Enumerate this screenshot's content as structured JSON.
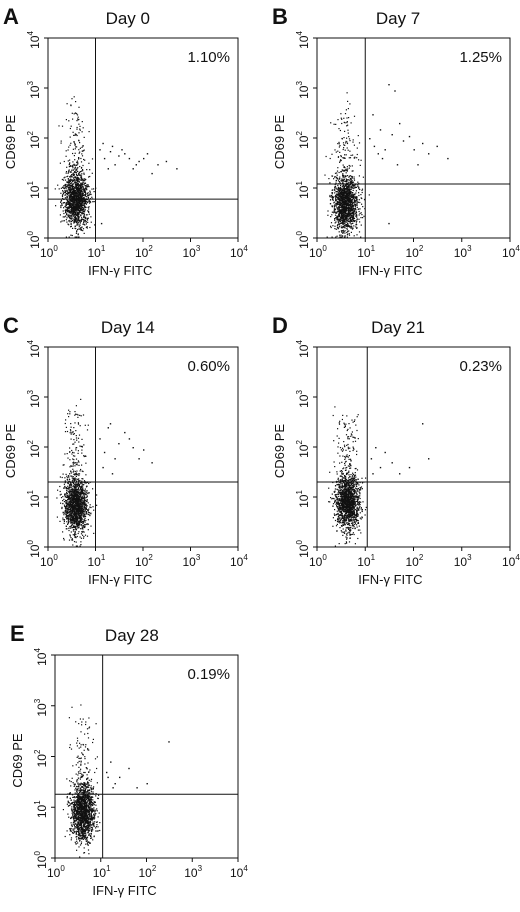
{
  "chart_data": [
    {
      "type": "scatter",
      "panel": "A",
      "title": "Day 0",
      "xlabel": "IFN-γ FITC",
      "ylabel": "CD69 PE",
      "xscale": "log",
      "yscale": "log",
      "xlim": [
        1,
        10000
      ],
      "ylim": [
        1,
        10000
      ],
      "xticks": [
        {
          "base": "10",
          "exp": "0"
        },
        {
          "base": "10",
          "exp": "1"
        },
        {
          "base": "10",
          "exp": "2"
        },
        {
          "base": "10",
          "exp": "3"
        },
        {
          "base": "10",
          "exp": "4"
        }
      ],
      "yticks": [
        {
          "base": "10",
          "exp": "0"
        },
        {
          "base": "10",
          "exp": "1"
        },
        {
          "base": "10",
          "exp": "2"
        },
        {
          "base": "10",
          "exp": "3"
        },
        {
          "base": "10",
          "exp": "4"
        }
      ],
      "gate_x": 10,
      "gate_y": 6,
      "annotation": "1.10%",
      "population": {
        "center_x": 3.8,
        "center_y": 6,
        "n": 1500
      },
      "outliers": [
        [
          12,
          60
        ],
        [
          15,
          40
        ],
        [
          20,
          55
        ],
        [
          25,
          30
        ],
        [
          30,
          45
        ],
        [
          40,
          50
        ],
        [
          60,
          25
        ],
        [
          80,
          35
        ],
        [
          100,
          40
        ],
        [
          150,
          20
        ],
        [
          200,
          30
        ],
        [
          300,
          35
        ],
        [
          500,
          25
        ],
        [
          14,
          80
        ],
        [
          18,
          25
        ],
        [
          22,
          70
        ],
        [
          35,
          60
        ],
        [
          50,
          40
        ],
        [
          70,
          30
        ],
        [
          120,
          50
        ],
        [
          13,
          2
        ]
      ]
    },
    {
      "type": "scatter",
      "panel": "B",
      "title": "Day 7",
      "xlabel": "IFN-γ FITC",
      "ylabel": "CD69 PE",
      "xscale": "log",
      "yscale": "log",
      "xlim": [
        1,
        10000
      ],
      "ylim": [
        1,
        10000
      ],
      "xticks": [
        {
          "base": "10",
          "exp": "0"
        },
        {
          "base": "10",
          "exp": "1"
        },
        {
          "base": "10",
          "exp": "2"
        },
        {
          "base": "10",
          "exp": "3"
        },
        {
          "base": "10",
          "exp": "4"
        }
      ],
      "yticks": [
        {
          "base": "10",
          "exp": "0"
        },
        {
          "base": "10",
          "exp": "1"
        },
        {
          "base": "10",
          "exp": "2"
        },
        {
          "base": "10",
          "exp": "3"
        },
        {
          "base": "10",
          "exp": "4"
        }
      ],
      "gate_x": 10,
      "gate_y": 12,
      "annotation": "1.25%",
      "population": {
        "center_x": 3.8,
        "center_y": 5,
        "n": 1500
      },
      "outliers": [
        [
          12,
          100
        ],
        [
          15,
          70
        ],
        [
          20,
          150
        ],
        [
          25,
          60
        ],
        [
          30,
          1200
        ],
        [
          40,
          900
        ],
        [
          50,
          200
        ],
        [
          60,
          90
        ],
        [
          80,
          110
        ],
        [
          100,
          60
        ],
        [
          150,
          80
        ],
        [
          200,
          50
        ],
        [
          300,
          70
        ],
        [
          500,
          40
        ],
        [
          14,
          300
        ],
        [
          18,
          50
        ],
        [
          22,
          40
        ],
        [
          35,
          120
        ],
        [
          45,
          30
        ],
        [
          120,
          30
        ],
        [
          30,
          2
        ]
      ]
    },
    {
      "type": "scatter",
      "panel": "C",
      "title": "Day 14",
      "xlabel": "IFN-γ FITC",
      "ylabel": "CD69 PE",
      "xscale": "log",
      "yscale": "log",
      "xlim": [
        1,
        10000
      ],
      "ylim": [
        1,
        10000
      ],
      "xticks": [
        {
          "base": "10",
          "exp": "0"
        },
        {
          "base": "10",
          "exp": "1"
        },
        {
          "base": "10",
          "exp": "2"
        },
        {
          "base": "10",
          "exp": "3"
        },
        {
          "base": "10",
          "exp": "4"
        }
      ],
      "yticks": [
        {
          "base": "10",
          "exp": "0"
        },
        {
          "base": "10",
          "exp": "1"
        },
        {
          "base": "10",
          "exp": "2"
        },
        {
          "base": "10",
          "exp": "3"
        },
        {
          "base": "10",
          "exp": "4"
        }
      ],
      "gate_x": 10,
      "gate_y": 20,
      "annotation": "0.60%",
      "population": {
        "center_x": 3.8,
        "center_y": 7,
        "n": 1500
      },
      "outliers": [
        [
          12,
          150
        ],
        [
          15,
          80
        ],
        [
          20,
          300
        ],
        [
          25,
          60
        ],
        [
          30,
          120
        ],
        [
          40,
          200
        ],
        [
          60,
          100
        ],
        [
          80,
          60
        ],
        [
          100,
          90
        ],
        [
          150,
          50
        ],
        [
          14,
          40
        ],
        [
          18,
          250
        ],
        [
          22,
          30
        ],
        [
          50,
          150
        ]
      ]
    },
    {
      "type": "scatter",
      "panel": "D",
      "title": "Day 21",
      "xlabel": "IFN-γ FITC",
      "ylabel": "CD69 PE",
      "xscale": "log",
      "yscale": "log",
      "xlim": [
        1,
        10000
      ],
      "ylim": [
        1,
        10000
      ],
      "xticks": [
        {
          "base": "10",
          "exp": "0"
        },
        {
          "base": "10",
          "exp": "1"
        },
        {
          "base": "10",
          "exp": "2"
        },
        {
          "base": "10",
          "exp": "3"
        },
        {
          "base": "10",
          "exp": "4"
        }
      ],
      "yticks": [
        {
          "base": "10",
          "exp": "0"
        },
        {
          "base": "10",
          "exp": "1"
        },
        {
          "base": "10",
          "exp": "2"
        },
        {
          "base": "10",
          "exp": "3"
        },
        {
          "base": "10",
          "exp": "4"
        }
      ],
      "gate_x": 11,
      "gate_y": 20,
      "annotation": "0.23%",
      "population": {
        "center_x": 4.2,
        "center_y": 8,
        "n": 1500
      },
      "outliers": [
        [
          13,
          60
        ],
        [
          16,
          100
        ],
        [
          20,
          40
        ],
        [
          25,
          80
        ],
        [
          35,
          50
        ],
        [
          50,
          30
        ],
        [
          80,
          40
        ],
        [
          150,
          300
        ],
        [
          200,
          60
        ],
        [
          14,
          30
        ]
      ]
    },
    {
      "type": "scatter",
      "panel": "E",
      "title": "Day 28",
      "xlabel": "IFN-γ FITC",
      "ylabel": "CD69 PE",
      "xscale": "log",
      "yscale": "log",
      "xlim": [
        1,
        10000
      ],
      "ylim": [
        1,
        10000
      ],
      "xticks": [
        {
          "base": "10",
          "exp": "0"
        },
        {
          "base": "10",
          "exp": "1"
        },
        {
          "base": "10",
          "exp": "2"
        },
        {
          "base": "10",
          "exp": "3"
        },
        {
          "base": "10",
          "exp": "4"
        }
      ],
      "yticks": [
        {
          "base": "10",
          "exp": "0"
        },
        {
          "base": "10",
          "exp": "1"
        },
        {
          "base": "10",
          "exp": "2"
        },
        {
          "base": "10",
          "exp": "3"
        },
        {
          "base": "10",
          "exp": "4"
        }
      ],
      "gate_x": 11,
      "gate_y": 18,
      "annotation": "0.19%",
      "population": {
        "center_x": 4,
        "center_y": 8,
        "n": 1500
      },
      "outliers": [
        [
          13,
          50
        ],
        [
          16,
          80
        ],
        [
          20,
          30
        ],
        [
          25,
          40
        ],
        [
          40,
          60
        ],
        [
          60,
          25
        ],
        [
          100,
          30
        ],
        [
          300,
          200
        ],
        [
          14,
          40
        ],
        [
          18,
          25
        ]
      ]
    }
  ]
}
